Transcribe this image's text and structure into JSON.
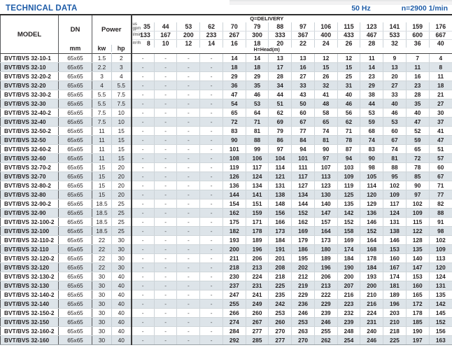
{
  "page": {
    "title": "TECHNICAL DATA",
    "frequency": "50 Hz",
    "speed": "n=2900 1/min"
  },
  "colors": {
    "accent_blue": "#1e5ca8",
    "alt_row": "#dde4e9",
    "dark_border": "#3c3c3c",
    "light_border": "#ccd3d8"
  },
  "table": {
    "headers": {
      "model": "MODEL",
      "dn": "DN",
      "dn_unit": "mm",
      "power": "Power",
      "kw": "kw",
      "hp": "hp",
      "delivery": "Q=DELIVERY",
      "head_pre": "H=Head(",
      "head_m": "m",
      "head_post": ")",
      "unit_rows": [
        {
          "unit": [
            "us",
            "gpm"
          ],
          "values": [
            35,
            44,
            53,
            62,
            70,
            79,
            88,
            97,
            106,
            115,
            123,
            141,
            159,
            176
          ]
        },
        {
          "unit": [
            "l/min"
          ],
          "values": [
            133,
            167,
            200,
            233,
            267,
            300,
            333,
            367,
            400,
            433,
            467,
            533,
            600,
            667
          ]
        },
        {
          "unit": [
            "m³/h"
          ],
          "values": [
            8,
            10,
            12,
            14,
            16,
            18,
            20,
            22,
            24,
            26,
            28,
            32,
            36,
            40
          ]
        }
      ]
    },
    "rows": [
      {
        "model": "BVT/BVS 32-10-1",
        "dn": "65x65",
        "kw": "1.5",
        "hp": "2",
        "head": [
          "-",
          "-",
          "-",
          "-",
          14,
          14,
          13,
          13,
          12,
          12,
          11,
          9,
          7,
          4
        ]
      },
      {
        "model": "BVT/BVS 32-10",
        "dn": "65x65",
        "kw": "2.2",
        "hp": "3",
        "head": [
          "-",
          "-",
          "-",
          "-",
          18,
          18,
          17,
          16,
          15,
          15,
          14,
          13,
          11,
          8
        ]
      },
      {
        "model": "BVT/BVS 32-20-2",
        "dn": "65x65",
        "kw": "3",
        "hp": "4",
        "head": [
          "-",
          "-",
          "-",
          "-",
          29,
          29,
          28,
          27,
          26,
          25,
          23,
          20,
          16,
          11
        ]
      },
      {
        "model": "BVT/BVS 32-20",
        "dn": "65x65",
        "kw": "4",
        "hp": "5.5",
        "head": [
          "-",
          "-",
          "-",
          "-",
          36,
          35,
          34,
          33,
          32,
          31,
          29,
          27,
          23,
          18
        ]
      },
      {
        "model": "BVT/BVS 32-30-2",
        "dn": "65x65",
        "kw": "5.5",
        "hp": "7.5",
        "head": [
          "-",
          "-",
          "-",
          "-",
          47,
          46,
          44,
          43,
          41,
          40,
          38,
          33,
          28,
          21
        ]
      },
      {
        "model": "BVT/BVS 32-30",
        "dn": "65x65",
        "kw": "5.5",
        "hp": "7.5",
        "head": [
          "-",
          "-",
          "-",
          "-",
          54,
          53,
          51,
          50,
          48,
          46,
          44,
          40,
          35,
          27
        ]
      },
      {
        "model": "BVT/BVS 32-40-2",
        "dn": "65x65",
        "kw": "7.5",
        "hp": "10",
        "head": [
          "-",
          "-",
          "-",
          "-",
          65,
          64,
          62,
          60,
          58,
          56,
          53,
          46,
          40,
          30
        ]
      },
      {
        "model": "BVT/BVS 32-40",
        "dn": "65x65",
        "kw": "7.5",
        "hp": "10",
        "head": [
          "-",
          "-",
          "-",
          "-",
          72,
          71,
          69,
          67,
          65,
          62,
          59,
          53,
          47,
          37
        ]
      },
      {
        "model": "BVT/BVS 32-50-2",
        "dn": "65x65",
        "kw": "11",
        "hp": "15",
        "head": [
          "-",
          "-",
          "-",
          "-",
          83,
          81,
          79,
          77,
          74,
          71,
          68,
          60,
          52,
          41
        ]
      },
      {
        "model": "BVT/BVS 32-50",
        "dn": "65x65",
        "kw": "11",
        "hp": "15",
        "head": [
          "-",
          "-",
          "-",
          "-",
          90,
          88,
          86,
          84,
          81,
          78,
          74,
          67,
          59,
          47
        ]
      },
      {
        "model": "BVT/BVS 32-60-2",
        "dn": "65x65",
        "kw": "11",
        "hp": "15",
        "head": [
          "-",
          "-",
          "-",
          "-",
          101,
          99,
          97,
          94,
          90,
          87,
          83,
          74,
          65,
          51
        ]
      },
      {
        "model": "BVT/BVS 32-60",
        "dn": "65x65",
        "kw": "11",
        "hp": "15",
        "head": [
          "-",
          "-",
          "-",
          "-",
          108,
          106,
          104,
          101,
          97,
          94,
          90,
          81,
          72,
          57
        ]
      },
      {
        "model": "BVT/BVS 32-70-2",
        "dn": "65x65",
        "kw": "15",
        "hp": "20",
        "head": [
          "-",
          "-",
          "-",
          "-",
          119,
          117,
          114,
          111,
          107,
          103,
          98,
          88,
          78,
          60
        ]
      },
      {
        "model": "BVT/BVS 32-70",
        "dn": "65x65",
        "kw": "15",
        "hp": "20",
        "head": [
          "-",
          "-",
          "-",
          "-",
          126,
          124,
          121,
          117,
          113,
          109,
          105,
          95,
          85,
          67
        ]
      },
      {
        "model": "BVT/BVS 32-80-2",
        "dn": "65x65",
        "kw": "15",
        "hp": "20",
        "head": [
          "-",
          "-",
          "-",
          "-",
          136,
          134,
          131,
          127,
          123,
          119,
          114,
          102,
          90,
          71
        ]
      },
      {
        "model": "BVT/BVS 32-80",
        "dn": "65x65",
        "kw": "15",
        "hp": "20",
        "head": [
          "-",
          "-",
          "-",
          "-",
          144,
          141,
          138,
          134,
          130,
          125,
          120,
          109,
          97,
          77
        ]
      },
      {
        "model": "BVT/BVS 32-90-2",
        "dn": "65x65",
        "kw": "18.5",
        "hp": "25",
        "head": [
          "-",
          "-",
          "-",
          "-",
          154,
          151,
          148,
          144,
          140,
          135,
          129,
          117,
          102,
          82
        ]
      },
      {
        "model": "BVT/BVS 32-90",
        "dn": "65x65",
        "kw": "18.5",
        "hp": "25",
        "head": [
          "-",
          "-",
          "-",
          "-",
          162,
          159,
          156,
          152,
          147,
          142,
          136,
          124,
          109,
          88
        ]
      },
      {
        "model": "BVT/BVS 32-100-2",
        "dn": "65x65",
        "kw": "18.5",
        "hp": "25",
        "head": [
          "-",
          "-",
          "-",
          "-",
          175,
          171,
          166,
          162,
          157,
          152,
          146,
          131,
          115,
          91
        ]
      },
      {
        "model": "BVT/BVS 32-100",
        "dn": "65x65",
        "kw": "18.5",
        "hp": "25",
        "head": [
          "-",
          "-",
          "-",
          "-",
          182,
          178,
          173,
          169,
          164,
          158,
          152,
          138,
          122,
          98
        ]
      },
      {
        "model": "BVT/BVS 32-110-2",
        "dn": "65x65",
        "kw": "22",
        "hp": "30",
        "head": [
          "-",
          "-",
          "-",
          "-",
          193,
          189,
          184,
          179,
          173,
          169,
          164,
          146,
          128,
          102
        ]
      },
      {
        "model": "BVT/BVS 32-110",
        "dn": "65x65",
        "kw": "22",
        "hp": "30",
        "head": [
          "-",
          "-",
          "-",
          "-",
          200,
          196,
          191,
          186,
          180,
          174,
          168,
          153,
          135,
          109
        ]
      },
      {
        "model": "BVT/BVS 32-120-2",
        "dn": "65x65",
        "kw": "22",
        "hp": "30",
        "head": [
          "-",
          "-",
          "-",
          "-",
          211,
          206,
          201,
          195,
          189,
          184,
          178,
          160,
          140,
          113
        ]
      },
      {
        "model": "BVT/BVS 32-120",
        "dn": "65x65",
        "kw": "22",
        "hp": "30",
        "head": [
          "-",
          "-",
          "-",
          "-",
          218,
          213,
          208,
          202,
          196,
          190,
          184,
          167,
          147,
          120
        ]
      },
      {
        "model": "BVT/BVS 32-130-2",
        "dn": "65x65",
        "kw": "30",
        "hp": "40",
        "head": [
          "-",
          "-",
          "-",
          "-",
          230,
          224,
          218,
          212,
          206,
          200,
          193,
          174,
          153,
          124
        ]
      },
      {
        "model": "BVT/BVS 32-130",
        "dn": "65x65",
        "kw": "30",
        "hp": "40",
        "head": [
          "-",
          "-",
          "-",
          "-",
          237,
          231,
          225,
          219,
          213,
          207,
          200,
          181,
          160,
          131
        ]
      },
      {
        "model": "BVT/BVS 32-140-2",
        "dn": "65x65",
        "kw": "30",
        "hp": "40",
        "head": [
          "-",
          "-",
          "-",
          "-",
          247,
          241,
          235,
          229,
          222,
          216,
          210,
          189,
          165,
          135
        ]
      },
      {
        "model": "BVT/BVS 32-140",
        "dn": "65x65",
        "kw": "30",
        "hp": "40",
        "head": [
          "-",
          "-",
          "-",
          "-",
          255,
          249,
          242,
          236,
          229,
          223,
          216,
          196,
          172,
          142
        ]
      },
      {
        "model": "BVT/BVS 32-150-2",
        "dn": "65x65",
        "kw": "30",
        "hp": "40",
        "head": [
          "-",
          "-",
          "-",
          "-",
          266,
          260,
          253,
          246,
          239,
          232,
          224,
          203,
          178,
          145
        ]
      },
      {
        "model": "BVT/BVS 32-150",
        "dn": "65x65",
        "kw": "30",
        "hp": "40",
        "head": [
          "-",
          "-",
          "-",
          "-",
          274,
          267,
          260,
          253,
          246,
          239,
          231,
          210,
          185,
          152
        ]
      },
      {
        "model": "BVT/BVS 32-160-2",
        "dn": "65x65",
        "kw": "30",
        "hp": "40",
        "head": [
          "-",
          "-",
          "-",
          "-",
          284,
          277,
          270,
          263,
          255,
          248,
          240,
          218,
          190,
          156
        ]
      },
      {
        "model": "BVT/BVS 32-160",
        "dn": "65x65",
        "kw": "30",
        "hp": "40",
        "head": [
          "-",
          "-",
          "-",
          "-",
          292,
          285,
          277,
          270,
          262,
          254,
          246,
          225,
          197,
          163
        ]
      }
    ]
  }
}
